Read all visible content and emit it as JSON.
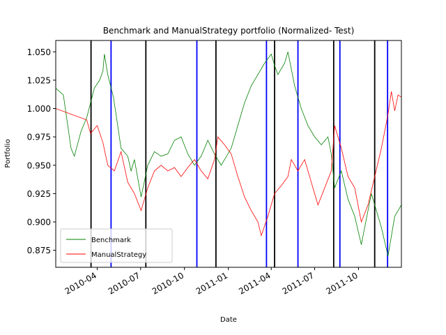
{
  "chart_data": {
    "type": "line",
    "title": "Benchmark and ManualStrategy portfolio (Normalized- Test)",
    "xlabel": "Date",
    "ylabel": "Portfolio",
    "x_range": [
      "2010-01-04",
      "2011-12-30"
    ],
    "ylim": [
      0.86,
      1.06
    ],
    "y_ticks": [
      0.875,
      0.9,
      0.925,
      0.95,
      0.975,
      1.0,
      1.025,
      1.05
    ],
    "y_tick_labels": [
      "0.875",
      "0.900",
      "0.925",
      "0.950",
      "0.975",
      "1.000",
      "1.025",
      "1.050"
    ],
    "x_ticks": [
      "2010-04-01",
      "2010-07-01",
      "2010-10-01",
      "2011-01-01",
      "2011-04-01",
      "2011-07-01",
      "2011-10-01"
    ],
    "x_tick_labels": [
      "2010-04",
      "2010-07",
      "2010-10",
      "2011-01",
      "2011-04",
      "2011-07",
      "2011-10"
    ],
    "grid": false,
    "legend_position": "lower-left",
    "series": [
      {
        "name": "Benchmark",
        "color": "#008000",
        "points": [
          [
            "2010-01-04",
            1.018
          ],
          [
            "2010-01-20",
            1.012
          ],
          [
            "2010-02-05",
            0.965
          ],
          [
            "2010-02-12",
            0.958
          ],
          [
            "2010-02-26",
            0.98
          ],
          [
            "2010-03-10",
            0.992
          ],
          [
            "2010-03-18",
            1.005
          ],
          [
            "2010-03-26",
            1.018
          ],
          [
            "2010-04-06",
            1.025
          ],
          [
            "2010-04-13",
            1.033
          ],
          [
            "2010-04-16",
            1.048
          ],
          [
            "2010-04-23",
            1.03
          ],
          [
            "2010-05-05",
            1.01
          ],
          [
            "2010-05-14",
            0.985
          ],
          [
            "2010-05-21",
            0.965
          ],
          [
            "2010-06-04",
            0.958
          ],
          [
            "2010-06-11",
            0.945
          ],
          [
            "2010-06-18",
            0.955
          ],
          [
            "2010-07-02",
            0.922
          ],
          [
            "2010-07-16",
            0.95
          ],
          [
            "2010-07-30",
            0.962
          ],
          [
            "2010-08-13",
            0.958
          ],
          [
            "2010-08-27",
            0.96
          ],
          [
            "2010-09-10",
            0.972
          ],
          [
            "2010-09-24",
            0.975
          ],
          [
            "2010-10-08",
            0.96
          ],
          [
            "2010-10-22",
            0.95
          ],
          [
            "2010-11-05",
            0.958
          ],
          [
            "2010-11-12",
            0.965
          ],
          [
            "2010-11-19",
            0.972
          ],
          [
            "2010-12-03",
            0.96
          ],
          [
            "2010-12-17",
            0.95
          ],
          [
            "2011-01-07",
            0.965
          ],
          [
            "2011-01-21",
            0.985
          ],
          [
            "2011-02-04",
            1.005
          ],
          [
            "2011-02-18",
            1.02
          ],
          [
            "2011-03-04",
            1.03
          ],
          [
            "2011-03-18",
            1.04
          ],
          [
            "2011-04-01",
            1.048
          ],
          [
            "2011-04-08",
            1.038
          ],
          [
            "2011-04-15",
            1.03
          ],
          [
            "2011-04-29",
            1.04
          ],
          [
            "2011-05-06",
            1.05
          ],
          [
            "2011-05-20",
            1.02
          ],
          [
            "2011-06-03",
            1.0
          ],
          [
            "2011-06-17",
            0.985
          ],
          [
            "2011-07-01",
            0.975
          ],
          [
            "2011-07-15",
            0.968
          ],
          [
            "2011-07-29",
            0.975
          ],
          [
            "2011-08-05",
            0.96
          ],
          [
            "2011-08-12",
            0.93
          ],
          [
            "2011-08-26",
            0.945
          ],
          [
            "2011-09-09",
            0.92
          ],
          [
            "2011-09-23",
            0.905
          ],
          [
            "2011-10-07",
            0.88
          ],
          [
            "2011-10-14",
            0.895
          ],
          [
            "2011-10-28",
            0.925
          ],
          [
            "2011-11-04",
            0.915
          ],
          [
            "2011-11-18",
            0.895
          ],
          [
            "2011-12-02",
            0.87
          ],
          [
            "2011-12-16",
            0.905
          ],
          [
            "2011-12-30",
            0.915
          ]
        ]
      },
      {
        "name": "ManualStrategy",
        "color": "#ff0000",
        "points": [
          [
            "2010-01-04",
            1.0
          ],
          [
            "2010-02-05",
            0.995
          ],
          [
            "2010-03-10",
            0.99
          ],
          [
            "2010-03-18",
            0.978
          ],
          [
            "2010-04-01",
            0.985
          ],
          [
            "2010-04-13",
            0.97
          ],
          [
            "2010-04-23",
            0.95
          ],
          [
            "2010-05-07",
            0.945
          ],
          [
            "2010-05-21",
            0.962
          ],
          [
            "2010-06-04",
            0.935
          ],
          [
            "2010-06-18",
            0.925
          ],
          [
            "2010-07-02",
            0.91
          ],
          [
            "2010-07-16",
            0.93
          ],
          [
            "2010-07-30",
            0.945
          ],
          [
            "2010-08-13",
            0.95
          ],
          [
            "2010-08-27",
            0.945
          ],
          [
            "2010-09-10",
            0.948
          ],
          [
            "2010-09-24",
            0.94
          ],
          [
            "2010-10-08",
            0.948
          ],
          [
            "2010-10-22",
            0.955
          ],
          [
            "2010-11-05",
            0.945
          ],
          [
            "2010-11-19",
            0.938
          ],
          [
            "2010-12-03",
            0.955
          ],
          [
            "2010-12-10",
            0.975
          ],
          [
            "2010-12-24",
            0.968
          ],
          [
            "2011-01-07",
            0.96
          ],
          [
            "2011-01-21",
            0.94
          ],
          [
            "2011-02-04",
            0.922
          ],
          [
            "2011-02-18",
            0.91
          ],
          [
            "2011-03-04",
            0.9
          ],
          [
            "2011-03-11",
            0.888
          ],
          [
            "2011-03-25",
            0.905
          ],
          [
            "2011-04-08",
            0.925
          ],
          [
            "2011-04-22",
            0.932
          ],
          [
            "2011-05-06",
            0.94
          ],
          [
            "2011-05-13",
            0.955
          ],
          [
            "2011-05-27",
            0.945
          ],
          [
            "2011-06-10",
            0.955
          ],
          [
            "2011-06-24",
            0.935
          ],
          [
            "2011-07-08",
            0.915
          ],
          [
            "2011-07-22",
            0.93
          ],
          [
            "2011-08-05",
            0.945
          ],
          [
            "2011-08-12",
            0.985
          ],
          [
            "2011-08-26",
            0.965
          ],
          [
            "2011-09-09",
            0.94
          ],
          [
            "2011-09-23",
            0.93
          ],
          [
            "2011-10-07",
            0.9
          ],
          [
            "2011-10-21",
            0.915
          ],
          [
            "2011-11-04",
            0.94
          ],
          [
            "2011-11-18",
            0.965
          ],
          [
            "2011-12-02",
            0.995
          ],
          [
            "2011-12-09",
            1.015
          ],
          [
            "2011-12-16",
            0.998
          ],
          [
            "2011-12-23",
            1.012
          ],
          [
            "2011-12-30",
            1.01
          ]
        ]
      }
    ],
    "vertical_lines": [
      {
        "date": "2010-03-19",
        "color": "#000000"
      },
      {
        "date": "2010-04-30",
        "color": "#0000ff"
      },
      {
        "date": "2010-07-12",
        "color": "#000000"
      },
      {
        "date": "2010-10-27",
        "color": "#0000ff"
      },
      {
        "date": "2010-12-06",
        "color": "#000000"
      },
      {
        "date": "2011-03-22",
        "color": "#0000ff"
      },
      {
        "date": "2011-04-08",
        "color": "#000000"
      },
      {
        "date": "2011-05-27",
        "color": "#0000ff"
      },
      {
        "date": "2011-08-10",
        "color": "#000000"
      },
      {
        "date": "2011-08-23",
        "color": "#0000ff"
      },
      {
        "date": "2011-11-04",
        "color": "#000000"
      },
      {
        "date": "2011-12-01",
        "color": "#0000ff"
      }
    ]
  }
}
